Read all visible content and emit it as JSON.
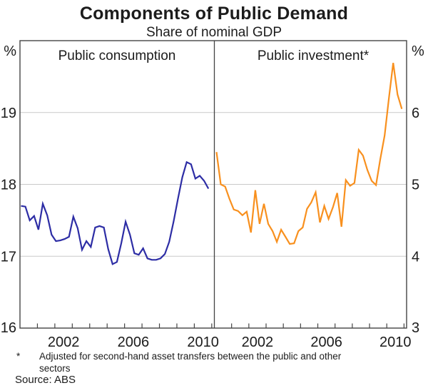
{
  "title": "Components of Public Demand",
  "subtitle": "Share of nominal GDP",
  "footnote": {
    "marker": "*",
    "text": "Adjusted for second-hand asset transfers between the public and other sectors"
  },
  "source": "Source: ABS",
  "colors": {
    "consumption_line": "#2D2DA5",
    "investment_line": "#F8901E",
    "gridline": "#C9C9C9",
    "frame": "#444444",
    "text": "#1C1C1C"
  },
  "chart_data": {
    "type": "line",
    "title": "Components of Public Demand",
    "subtitle": "Share of nominal GDP",
    "grid": true,
    "legend": "none",
    "x_frequency": "quarterly",
    "x_start": "2000Q1",
    "x_end": "2010Q4",
    "x_ticks": "yearly",
    "x_labeled_years": [
      2002,
      2006,
      2010
    ],
    "panels": [
      {
        "label": "Public consumption",
        "axis_side": "left",
        "axis_unit": "%",
        "ylim": [
          16,
          20
        ],
        "yticks": [
          16,
          17,
          18,
          19
        ],
        "color": "#2D2DA5",
        "values": [
          17.7,
          17.69,
          17.5,
          17.56,
          17.37,
          17.73,
          17.57,
          17.3,
          17.21,
          17.22,
          17.24,
          17.27,
          17.55,
          17.39,
          17.09,
          17.21,
          17.13,
          17.4,
          17.42,
          17.4,
          17.1,
          16.89,
          16.92,
          17.18,
          17.48,
          17.3,
          17.04,
          17.02,
          17.11,
          16.97,
          16.95,
          16.95,
          16.97,
          17.03,
          17.2,
          17.48,
          17.8,
          18.1,
          18.31,
          18.28,
          18.08,
          18.12,
          18.05,
          17.94
        ]
      },
      {
        "label": "Public investment*",
        "axis_side": "right",
        "axis_unit": "%",
        "ylim": [
          3,
          7
        ],
        "yticks": [
          3,
          4,
          5,
          6
        ],
        "color": "#F8901E",
        "values": [
          5.45,
          5.0,
          4.97,
          4.8,
          4.65,
          4.63,
          4.57,
          4.62,
          4.33,
          4.92,
          4.45,
          4.73,
          4.45,
          4.35,
          4.2,
          4.37,
          4.27,
          4.17,
          4.18,
          4.35,
          4.4,
          4.66,
          4.75,
          4.89,
          4.47,
          4.7,
          4.52,
          4.68,
          4.88,
          4.41,
          5.06,
          4.98,
          5.02,
          5.48,
          5.4,
          5.2,
          5.05,
          4.99,
          5.35,
          5.68,
          6.2,
          6.69,
          6.25,
          6.05
        ]
      }
    ]
  }
}
